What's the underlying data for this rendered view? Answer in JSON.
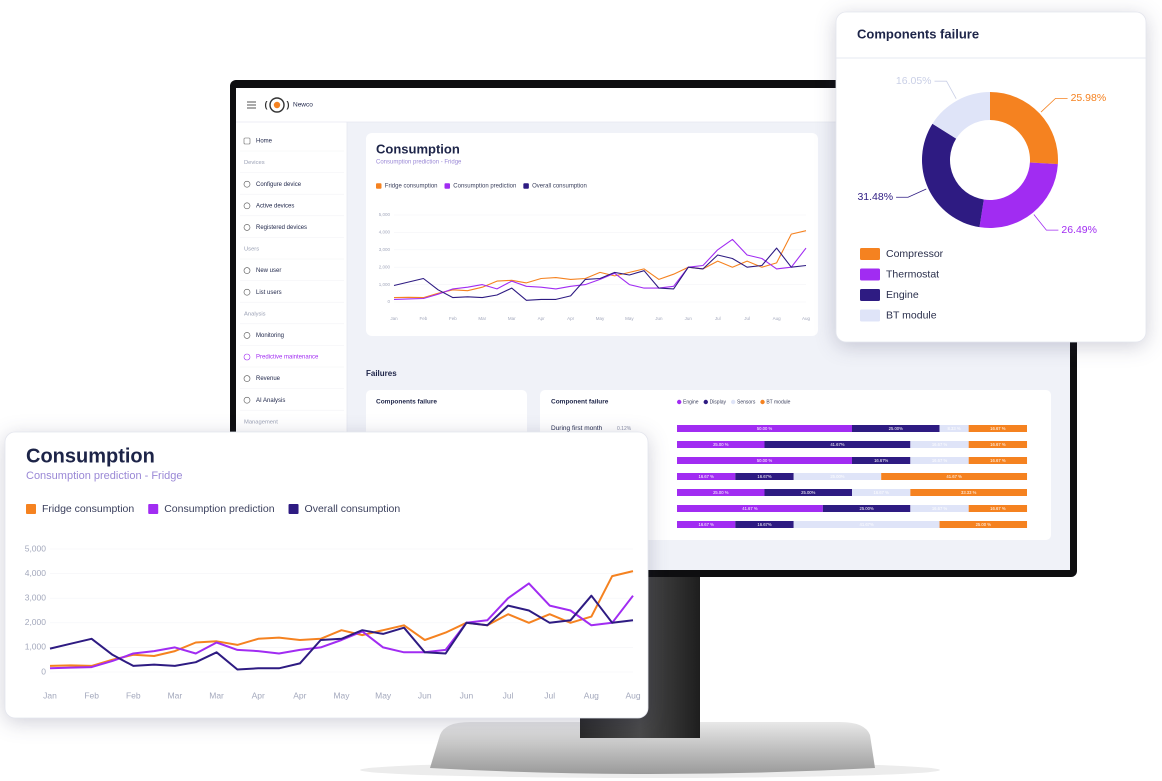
{
  "header": {
    "brand": "Newco"
  },
  "sidebar": {
    "home": "Home",
    "groups": [
      {
        "title": "Devices",
        "items": [
          "Configure device",
          "Active devices",
          "Registered devices"
        ]
      },
      {
        "title": "Users",
        "items": [
          "New user",
          "List users"
        ]
      },
      {
        "title": "Analysis",
        "items": [
          "Monitoring",
          "Predictive maintenance",
          "Revenue",
          "AI Analysis"
        ]
      },
      {
        "title": "Management",
        "items": []
      }
    ]
  },
  "failures": {
    "heading": "Failures"
  },
  "chart_data": [
    {
      "type": "line",
      "title": "Consumption",
      "subtitle": "Consumption prediction - Fridge",
      "categories": [
        "Jan",
        null,
        "Feb",
        null,
        "Feb",
        null,
        "Mar",
        null,
        "Mar",
        null,
        "Apr",
        null,
        "Apr",
        null,
        "May",
        null,
        "May",
        null,
        "Jun",
        null,
        "Jun",
        null,
        "Jul",
        null,
        "Jul",
        null,
        "Aug",
        null,
        "Aug"
      ],
      "series": [
        {
          "name": "Fridge consumption",
          "color": "#f58220",
          "values": [
            250,
            270,
            250,
            500,
            700,
            650,
            850,
            1200,
            1250,
            1100,
            1350,
            1400,
            1300,
            1350,
            1700,
            1500,
            1700,
            1900,
            1300,
            1600,
            2000,
            1900,
            2350,
            2000,
            2350,
            2000,
            2250,
            3900,
            4100
          ]
        },
        {
          "name": "Consumption prediction",
          "color": "#a12cf2",
          "values": [
            150,
            180,
            200,
            450,
            750,
            850,
            1000,
            750,
            1200,
            900,
            850,
            750,
            900,
            1000,
            1300,
            1650,
            1000,
            800,
            800,
            900,
            2000,
            2100,
            3000,
            3600,
            2700,
            2500,
            1900,
            2000,
            3100
          ]
        },
        {
          "name": "Overall consumption",
          "color": "#2e1b82",
          "values": [
            950,
            1150,
            1350,
            700,
            250,
            300,
            250,
            400,
            800,
            100,
            150,
            150,
            350,
            1300,
            1350,
            1700,
            1550,
            1800,
            800,
            750,
            2000,
            1900,
            2700,
            2500,
            2000,
            2100,
            3100,
            2000,
            2100
          ]
        }
      ],
      "ylim": [
        0,
        5000
      ],
      "yticks": [
        0,
        {
          "value": 1000,
          "label": "1,000"
        },
        {
          "value": 2000,
          "label": "2,000"
        },
        {
          "value": 3000,
          "label": "3,000"
        },
        {
          "value": 4000,
          "label": "4,000"
        },
        {
          "value": 5000,
          "label": "5,000"
        }
      ]
    },
    {
      "type": "donut",
      "title": "Components failure",
      "categories": [
        "Compressor",
        "Thermostat",
        "Engine",
        "BT module"
      ],
      "values": [
        25.98,
        26.49,
        31.48,
        16.05
      ],
      "value_labels": [
        "25.98%",
        "26.49%",
        "31.48%",
        "16.05%"
      ],
      "colors": [
        "#f58220",
        "#a12cf2",
        "#2e1b82",
        "#dfe4f8"
      ]
    },
    {
      "type": "stacked-bar",
      "title": "Component failure",
      "categories": [
        "During first month",
        null,
        null,
        null,
        null,
        null,
        null
      ],
      "annotations": [
        "0.12%"
      ],
      "xlim": [
        0,
        100
      ],
      "series": [
        {
          "name": "Engine",
          "color": "#a12cf2",
          "values": [
            50,
            25,
            50,
            16.67,
            25,
            41.67,
            16.67
          ],
          "value_labels": [
            "50.00 %",
            "25.00 %",
            "50.00 %",
            "16.67 %",
            "25.00 %",
            "41.67 %",
            "16.67 %"
          ]
        },
        {
          "name": "Display",
          "color": "#2e1b82",
          "values": [
            25,
            41.67,
            16.67,
            16.67,
            25,
            25,
            16.67
          ],
          "value_labels": [
            "25.00%",
            "41.67%",
            "16.67%",
            "16.67%",
            "25.00%",
            "25.00%",
            "16.67%"
          ]
        },
        {
          "name": "Sensors",
          "color": "#dfe4f8",
          "values": [
            8.33,
            16.67,
            16.67,
            25,
            16.67,
            16.67,
            41.67
          ],
          "value_labels": [
            "8.33 %",
            "16.67 %",
            "16.67 %",
            "25.00%",
            "16.67 %",
            "16.67 %",
            "41.67%"
          ]
        },
        {
          "name": "BT module",
          "color": "#f58220",
          "values": [
            16.67,
            16.67,
            16.67,
            41.67,
            33.33,
            16.67,
            25
          ],
          "value_labels": [
            "16.67 %",
            "16.67 %",
            "16.67 %",
            "41.67 %",
            "33.33 %",
            "16.67 %",
            "25.00 %"
          ]
        }
      ]
    }
  ]
}
